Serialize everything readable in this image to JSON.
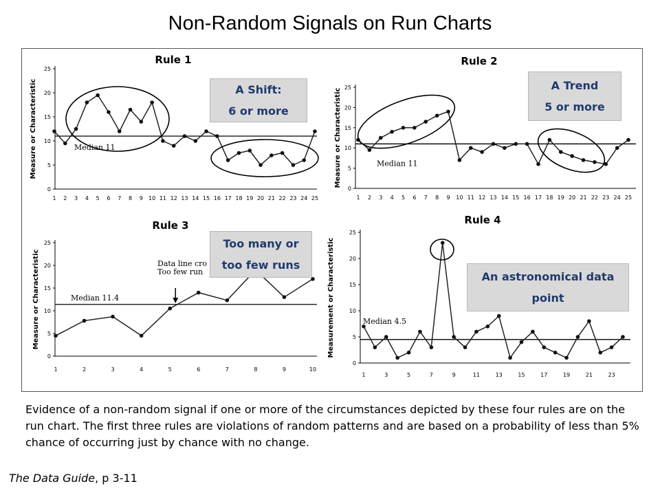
{
  "title": "Non-Random Signals on Run Charts",
  "description": "Evidence of a non-random signal if one or more of the circumstances depicted by these four rules are on the run chart. The first three rules are violations of random patterns and are based on a probability of less than 5% chance of occurring just by chance with no change.",
  "source": {
    "title": "The Data Guide",
    "page": ", p 3-11"
  },
  "callouts": {
    "rule1": {
      "line1": "A Shift:",
      "line2": "6 or more"
    },
    "rule2": {
      "line1": "A Trend",
      "line2": "5 or more"
    },
    "rule3": {
      "line1": "Too many or",
      "line2": "too few runs"
    },
    "rule4": {
      "line1": "An astronomical data",
      "line2": "point"
    }
  },
  "chart_data": [
    {
      "type": "line",
      "title": "Rule 1",
      "ylabel": "Measure or Characteristic",
      "median_label": "Median 11",
      "median": 11,
      "ylim": [
        0,
        25
      ],
      "yticks": [
        0,
        5,
        10,
        15,
        20,
        25
      ],
      "x": [
        1,
        2,
        3,
        4,
        5,
        6,
        7,
        8,
        9,
        10,
        11,
        12,
        13,
        14,
        15,
        16,
        17,
        18,
        19,
        20,
        21,
        22,
        23,
        24,
        25
      ],
      "xtick_labels": [
        "1",
        "2",
        "3",
        "4",
        "5",
        "6",
        "7",
        "8",
        "9",
        "10",
        "11",
        "12",
        "13",
        "14",
        "15",
        "16",
        "17",
        "18",
        "19",
        "20",
        "21",
        "22",
        "23",
        "24",
        "25"
      ],
      "values": [
        12,
        9.5,
        12.5,
        18,
        19.5,
        16,
        12,
        16.5,
        14,
        18,
        10,
        9,
        11,
        10,
        12,
        11,
        6,
        7.5,
        8,
        5,
        7,
        7.5,
        5,
        6,
        12
      ]
    },
    {
      "type": "line",
      "title": "Rule 2",
      "ylabel": "Measure or Characteristic",
      "median_label": "Median 11",
      "median": 11,
      "ylim": [
        0,
        25
      ],
      "yticks": [
        0,
        5,
        10,
        15,
        20,
        25
      ],
      "x": [
        1,
        2,
        3,
        4,
        5,
        6,
        7,
        8,
        9,
        10,
        11,
        12,
        13,
        14,
        15,
        16,
        17,
        18,
        19,
        20,
        21,
        22,
        23,
        24,
        25
      ],
      "xtick_labels": [
        "1",
        "2",
        "3",
        "4",
        "5",
        "6",
        "7",
        "8",
        "9",
        "10",
        "11",
        "12",
        "13",
        "14",
        "15",
        "16",
        "17",
        "18",
        "19",
        "20",
        "21",
        "22",
        "23",
        "24",
        "25"
      ],
      "values": [
        12,
        9.5,
        12.5,
        14,
        15,
        15,
        16.5,
        18,
        19,
        7,
        10,
        9,
        11,
        10,
        11,
        11,
        6,
        12,
        9,
        8,
        7,
        6.5,
        6,
        10,
        12
      ]
    },
    {
      "type": "line",
      "title": "Rule 3",
      "ylabel": "Measure or Characteristic",
      "median_label": "Median 11.4",
      "median": 11.4,
      "annotation": {
        "line1": "Data line cro",
        "line2": "Too few run"
      },
      "ylim": [
        0,
        25
      ],
      "yticks": [
        0,
        5,
        10,
        15,
        20,
        25
      ],
      "x": [
        1,
        2,
        3,
        4,
        5,
        6,
        7,
        8,
        9,
        10
      ],
      "xtick_labels": [
        "1",
        "2",
        "3",
        "4",
        "5",
        "6",
        "7",
        "8",
        "9",
        "10"
      ],
      "values": [
        4.5,
        7.8,
        8.7,
        4.5,
        10.5,
        14,
        12.3,
        19,
        13,
        17
      ]
    },
    {
      "type": "line",
      "title": "Rule 4",
      "ylabel": "Measurement or Characteristic",
      "median_label": "Median 4.5",
      "median": 4.5,
      "ylim": [
        0,
        25
      ],
      "yticks": [
        0,
        5,
        10,
        15,
        20,
        25
      ],
      "x": [
        1,
        2,
        3,
        4,
        5,
        6,
        7,
        8,
        9,
        10,
        11,
        12,
        13,
        14,
        15,
        16,
        17,
        18,
        19,
        20,
        21,
        22,
        23,
        24
      ],
      "xtick_labels": [
        "1",
        "3",
        "5",
        "7",
        "9",
        "11",
        "13",
        "15",
        "17",
        "19",
        "21",
        "23"
      ],
      "values": [
        7,
        3,
        5,
        1,
        2,
        6,
        3,
        23,
        5,
        3,
        6,
        7,
        9,
        1,
        4,
        6,
        3,
        2,
        1,
        5,
        8,
        2,
        3,
        5
      ]
    }
  ]
}
